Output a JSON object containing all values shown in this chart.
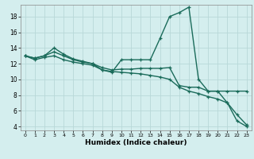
{
  "xlabel": "Humidex (Indice chaleur)",
  "bg_color": "#d4eeee",
  "grid_color": "#b8d8d8",
  "line_color": "#1a6b5a",
  "xlim": [
    -0.5,
    23.5
  ],
  "ylim": [
    3.5,
    19.5
  ],
  "xticks": [
    0,
    1,
    2,
    3,
    4,
    5,
    6,
    7,
    8,
    9,
    10,
    11,
    12,
    13,
    14,
    15,
    16,
    17,
    18,
    19,
    20,
    21,
    22,
    23
  ],
  "yticks": [
    4,
    6,
    8,
    10,
    12,
    14,
    16,
    18
  ],
  "lines": [
    {
      "x": [
        0,
        1,
        2,
        3,
        4,
        5,
        6,
        7,
        8,
        9,
        10,
        11,
        12,
        13,
        14,
        15,
        16,
        17,
        18,
        19,
        20,
        21,
        22,
        23
      ],
      "y": [
        13.0,
        12.7,
        13.0,
        14.0,
        13.2,
        12.6,
        12.3,
        12.0,
        11.2,
        10.9,
        12.5,
        12.5,
        12.5,
        12.5,
        15.2,
        18.0,
        18.5,
        19.2,
        10.0,
        8.5,
        8.5,
        7.0,
        4.7,
        4.0
      ]
    },
    {
      "x": [
        0,
        1,
        2,
        3,
        4,
        5,
        6,
        7,
        8,
        9,
        10,
        11,
        12,
        13,
        14,
        15,
        16,
        17,
        18,
        19,
        20,
        21,
        22,
        23
      ],
      "y": [
        13.0,
        12.7,
        13.0,
        13.5,
        13.0,
        12.5,
        12.2,
        12.0,
        11.5,
        11.2,
        11.3,
        11.3,
        11.4,
        11.4,
        11.4,
        11.5,
        9.2,
        9.0,
        9.0,
        8.5,
        8.5,
        8.5,
        8.5,
        8.5
      ]
    },
    {
      "x": [
        0,
        1,
        2,
        3,
        4,
        5,
        6,
        7,
        8,
        9,
        10,
        11,
        12,
        13,
        14,
        15,
        16,
        17,
        18,
        19,
        20,
        21,
        22,
        23
      ],
      "y": [
        13.0,
        12.5,
        12.8,
        13.0,
        12.5,
        12.2,
        12.0,
        11.8,
        11.2,
        11.0,
        10.9,
        10.8,
        10.7,
        10.5,
        10.3,
        10.0,
        9.0,
        8.5,
        8.2,
        7.8,
        7.5,
        7.0,
        5.5,
        4.2
      ]
    }
  ]
}
